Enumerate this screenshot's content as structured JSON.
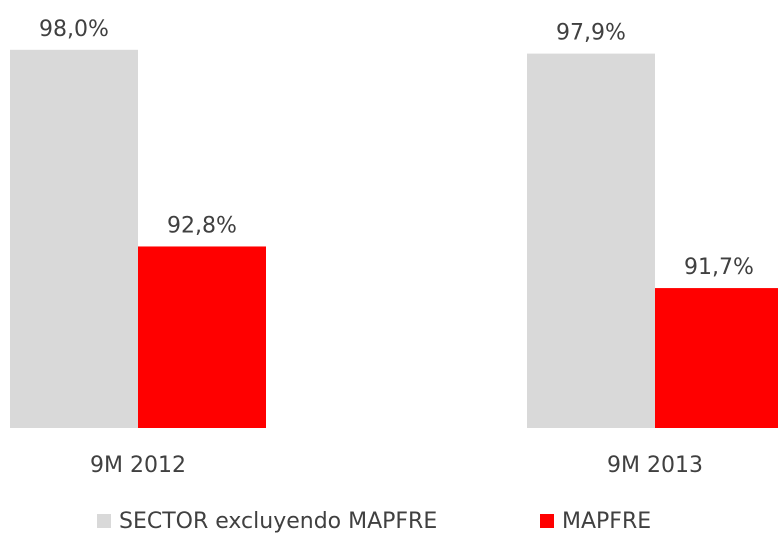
{
  "chart_data": {
    "type": "bar",
    "categories": [
      "9M 2012",
      "9M 2013"
    ],
    "series": [
      {
        "name": "SECTOR excluyendo MAPFRE",
        "color": "#d9d9d9",
        "values": [
          98.0,
          97.9
        ],
        "value_labels": [
          "98,0%",
          "97,9%"
        ]
      },
      {
        "name": "MAPFRE",
        "color": "#ff0000",
        "values": [
          92.8,
          91.7
        ],
        "value_labels": [
          "92,8%",
          "91,7%"
        ]
      }
    ],
    "ylim": [
      88,
      99
    ],
    "legend": "bottom"
  }
}
